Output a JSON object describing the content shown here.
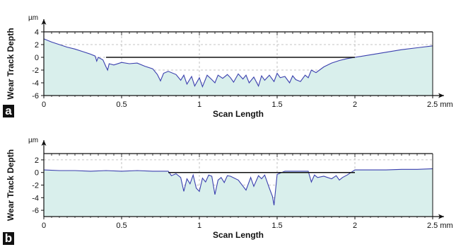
{
  "chart_data": [
    {
      "panel": "a",
      "type": "area",
      "xlabel": "Scan Length",
      "ylabel": "Wear Track Depth",
      "y_unit": "µm",
      "x_unit": "mm",
      "xlim": [
        0,
        2.5
      ],
      "ylim": [
        -6,
        4
      ],
      "x_ticks": [
        0,
        0.5,
        1,
        1.5,
        2,
        2.5
      ],
      "x_tick_labels": [
        "0",
        "0.5",
        "1",
        "1.5",
        "2",
        "2.5 mm"
      ],
      "y_ticks": [
        4,
        2,
        0,
        -2,
        -4,
        -6
      ],
      "y_tick_labels": [
        "4",
        "2",
        "0",
        "-2",
        "-4",
        "-6"
      ],
      "grid": true,
      "reference_line": {
        "y": 0,
        "x_start": 0.4,
        "x_end": 2.0
      },
      "series": [
        {
          "x": [
            0,
            0.05,
            0.1,
            0.15,
            0.2,
            0.25,
            0.3,
            0.33,
            0.34,
            0.35,
            0.38,
            0.4,
            0.41,
            0.42,
            0.45,
            0.5,
            0.55,
            0.6,
            0.65,
            0.7,
            0.73,
            0.75,
            0.77,
            0.8,
            0.85,
            0.88,
            0.9,
            0.92,
            0.95,
            0.97,
            1.0,
            1.02,
            1.05,
            1.08,
            1.1,
            1.12,
            1.15,
            1.18,
            1.2,
            1.22,
            1.25,
            1.28,
            1.3,
            1.32,
            1.35,
            1.38,
            1.4,
            1.42,
            1.45,
            1.48,
            1.5,
            1.52,
            1.55,
            1.58,
            1.6,
            1.62,
            1.65,
            1.68,
            1.7,
            1.72,
            1.75,
            1.8,
            1.85,
            1.9,
            1.95,
            2.0,
            2.1,
            2.2,
            2.3,
            2.4,
            2.5
          ],
          "y": [
            2.9,
            2.4,
            2.0,
            1.6,
            1.3,
            0.9,
            0.5,
            0.2,
            -0.6,
            0.0,
            -0.4,
            -1.5,
            -2.0,
            -1.0,
            -1.2,
            -0.8,
            -1.0,
            -0.9,
            -1.4,
            -1.8,
            -2.7,
            -3.7,
            -2.5,
            -2.2,
            -2.7,
            -3.6,
            -2.8,
            -4.2,
            -3.0,
            -4.5,
            -3.2,
            -4.6,
            -2.8,
            -3.5,
            -4.0,
            -2.8,
            -3.3,
            -2.7,
            -3.2,
            -3.9,
            -2.6,
            -3.4,
            -2.8,
            -4.0,
            -3.1,
            -4.5,
            -2.9,
            -3.6,
            -2.8,
            -3.8,
            -2.5,
            -3.2,
            -3.0,
            -4.0,
            -2.9,
            -3.5,
            -3.8,
            -2.8,
            -3.2,
            -2.0,
            -2.4,
            -1.5,
            -0.9,
            -0.5,
            -0.2,
            0.0,
            0.4,
            0.8,
            1.2,
            1.5,
            1.8
          ]
        }
      ]
    },
    {
      "panel": "b",
      "type": "area",
      "xlabel": "Scan Length",
      "ylabel": "Wear Track Depth",
      "y_unit": "µm",
      "x_unit": "mm",
      "xlim": [
        0,
        2.5
      ],
      "ylim": [
        -7,
        3
      ],
      "x_ticks": [
        0,
        0.5,
        1,
        1.5,
        2,
        2.5
      ],
      "x_tick_labels": [
        "0",
        "0.5",
        "1",
        "1.5",
        "2",
        "2.5 mm"
      ],
      "y_ticks": [
        2,
        0,
        -2,
        -4,
        -6
      ],
      "y_tick_labels": [
        "2",
        "0",
        "-2",
        "-4",
        "-6"
      ],
      "grid": true,
      "reference_line": {
        "y": 0,
        "x_start": 0.8,
        "x_end": 2.0
      },
      "series": [
        {
          "x": [
            0,
            0.1,
            0.2,
            0.3,
            0.4,
            0.5,
            0.6,
            0.7,
            0.8,
            0.82,
            0.85,
            0.88,
            0.9,
            0.92,
            0.94,
            0.96,
            0.98,
            1.0,
            1.02,
            1.04,
            1.06,
            1.08,
            1.1,
            1.12,
            1.14,
            1.16,
            1.18,
            1.2,
            1.25,
            1.3,
            1.33,
            1.35,
            1.38,
            1.4,
            1.42,
            1.45,
            1.47,
            1.48,
            1.5,
            1.55,
            1.6,
            1.65,
            1.7,
            1.72,
            1.74,
            1.76,
            1.8,
            1.85,
            1.88,
            1.9,
            1.92,
            1.95,
            2.0,
            2.1,
            2.2,
            2.3,
            2.4,
            2.5
          ],
          "y": [
            0.4,
            0.3,
            0.3,
            0.2,
            0.3,
            0.2,
            0.3,
            0.2,
            0.2,
            -0.5,
            -0.2,
            -0.8,
            -3.0,
            -1.0,
            -1.8,
            -0.4,
            -2.5,
            -3.0,
            -0.9,
            -1.5,
            -0.4,
            -0.6,
            -3.5,
            -1.2,
            -0.8,
            -1.6,
            -0.5,
            -0.6,
            -1.2,
            -2.8,
            -0.8,
            -2.2,
            -0.5,
            -1.0,
            -0.4,
            -2.5,
            -3.8,
            -5.2,
            -0.3,
            0.2,
            0.2,
            0.2,
            0.2,
            -1.5,
            -0.4,
            -0.8,
            -0.6,
            -1.0,
            -0.5,
            -1.2,
            -0.8,
            -0.4,
            0.4,
            0.4,
            0.4,
            0.5,
            0.5,
            0.6
          ]
        }
      ]
    }
  ],
  "panel_letters": [
    "a",
    "b"
  ],
  "colors": {
    "fill": "#d9efec",
    "line": "#3a3fae",
    "axis": "#111111",
    "grid": "#b3b3b3",
    "letter_box": "#111111"
  }
}
